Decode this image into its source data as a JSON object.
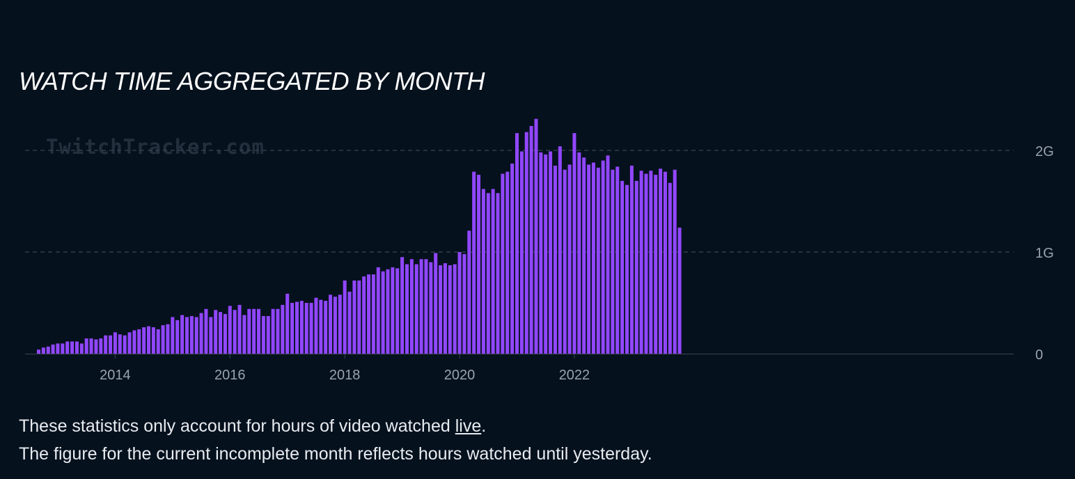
{
  "chart_data": {
    "type": "bar",
    "title": "WATCH TIME AGGREGATED BY MONTH",
    "watermark": "TwitchTracker.com",
    "start_month": "2012-09",
    "value_unit": "hours",
    "x_ticks": [
      "2014",
      "2016",
      "2018",
      "2020",
      "2022"
    ],
    "y_ticks": [
      {
        "value": 0,
        "label": "0"
      },
      {
        "value": 1000000000,
        "label": "1G"
      },
      {
        "value": 2000000000,
        "label": "2G"
      }
    ],
    "ylim": [
      0,
      2400000000
    ],
    "grid": true,
    "bar_color": "#9147ff",
    "values_billions": [
      0.04,
      0.06,
      0.07,
      0.09,
      0.1,
      0.1,
      0.12,
      0.12,
      0.12,
      0.1,
      0.15,
      0.15,
      0.14,
      0.15,
      0.18,
      0.18,
      0.21,
      0.19,
      0.18,
      0.21,
      0.23,
      0.24,
      0.26,
      0.27,
      0.26,
      0.24,
      0.28,
      0.29,
      0.36,
      0.33,
      0.38,
      0.36,
      0.37,
      0.36,
      0.4,
      0.44,
      0.36,
      0.43,
      0.41,
      0.39,
      0.47,
      0.43,
      0.48,
      0.38,
      0.44,
      0.44,
      0.44,
      0.37,
      0.37,
      0.44,
      0.44,
      0.48,
      0.59,
      0.5,
      0.51,
      0.52,
      0.5,
      0.5,
      0.55,
      0.53,
      0.52,
      0.58,
      0.56,
      0.58,
      0.72,
      0.61,
      0.72,
      0.72,
      0.76,
      0.78,
      0.78,
      0.85,
      0.81,
      0.83,
      0.85,
      0.84,
      0.95,
      0.88,
      0.93,
      0.88,
      0.93,
      0.93,
      0.9,
      0.99,
      0.87,
      0.89,
      0.87,
      0.88,
      1.0,
      0.98,
      1.21,
      1.79,
      1.76,
      1.62,
      1.58,
      1.62,
      1.58,
      1.77,
      1.79,
      1.87,
      2.17,
      1.99,
      2.18,
      2.24,
      2.31,
      1.98,
      1.96,
      1.99,
      1.85,
      2.04,
      1.81,
      1.86,
      2.17,
      1.98,
      1.93,
      1.86,
      1.88,
      1.83,
      1.9,
      1.95,
      1.81,
      1.84,
      1.7,
      1.66,
      1.85,
      1.7,
      1.8,
      1.77,
      1.8,
      1.76,
      1.82,
      1.79,
      1.68,
      1.81,
      1.24
    ]
  },
  "footnote": {
    "line1_prefix": "These statistics only account for hours of video watched ",
    "line1_link": "live",
    "line1_suffix": ".",
    "line2": "The figure for the current incomplete month reflects hours watched until yesterday."
  }
}
